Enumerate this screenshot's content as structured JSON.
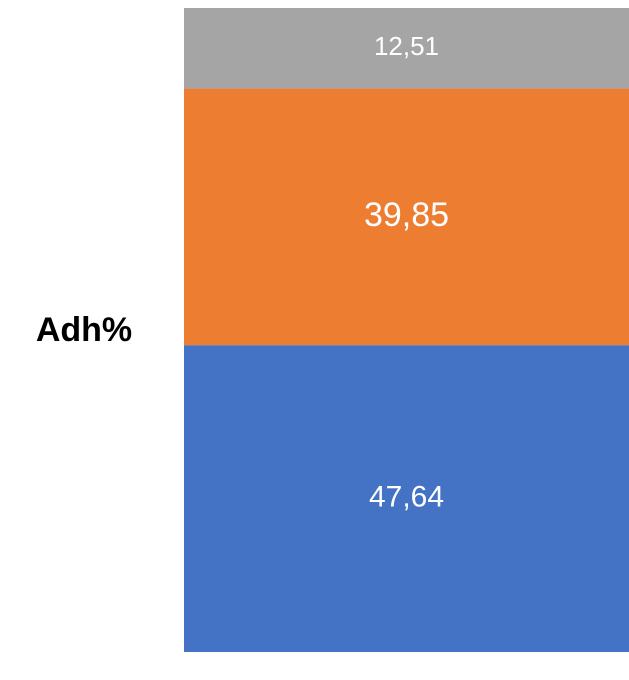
{
  "chart_data": {
    "type": "stacked_bar",
    "categories": [
      "Adh%"
    ],
    "series": [
      {
        "color": "#4472c4",
        "values": [
          47.64
        ],
        "value_labels": [
          "47,64"
        ]
      },
      {
        "color": "#ed7d31",
        "values": [
          39.85
        ],
        "value_labels": [
          "39,85"
        ]
      },
      {
        "color": "#a5a5a5",
        "values": [
          12.51
        ],
        "value_labels": [
          "12,51"
        ]
      }
    ],
    "ylim": [
      0,
      100
    ]
  }
}
